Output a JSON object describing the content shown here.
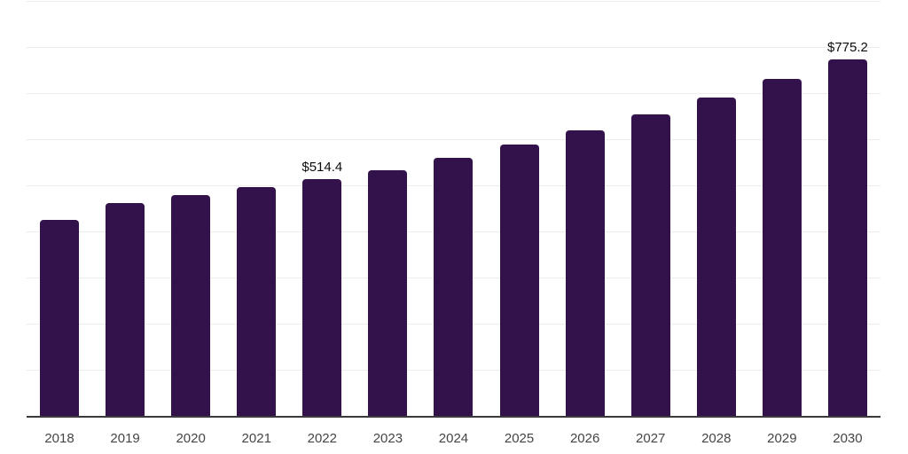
{
  "chart_data": {
    "type": "bar",
    "title": "",
    "xlabel": "",
    "ylabel": "",
    "categories": [
      "2018",
      "2019",
      "2020",
      "2021",
      "2022",
      "2023",
      "2024",
      "2025",
      "2026",
      "2027",
      "2028",
      "2029",
      "2030"
    ],
    "values": [
      426.5,
      464.0,
      480.0,
      497.0,
      514.4,
      535.0,
      561.0,
      590.5,
      621.5,
      654.5,
      691.0,
      732.0,
      775.2
    ],
    "data_labels": [
      {
        "category": "2022",
        "text": "$514.4"
      },
      {
        "category": "2030",
        "text": "$775.2"
      }
    ],
    "ylim": [
      0,
      900
    ],
    "y_tick_labels_shown": false,
    "gridlines": [
      100,
      200,
      300,
      400,
      500,
      600,
      700,
      800,
      900
    ],
    "grid_on": true,
    "legend": "none",
    "colors": {
      "bar": "#33114a",
      "gridline": "#ededed",
      "axis_line": "#3a3a3a",
      "data_label_text": "#0c0c0c",
      "tick_label_text": "#454545",
      "background": "#ffffff"
    }
  }
}
